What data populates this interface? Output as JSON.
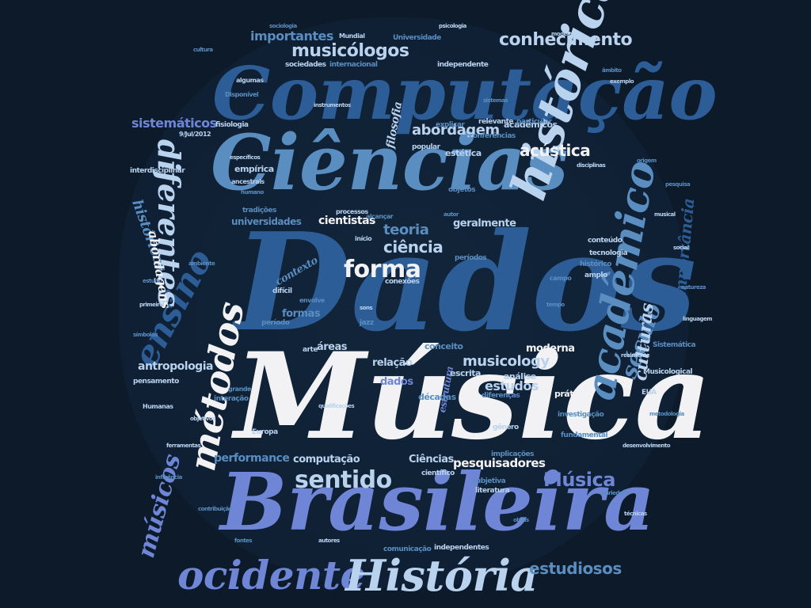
{
  "words": {
    "musica": "Música",
    "dados": "Dados",
    "brasileira": "Brasileira",
    "ciencias": "Ciências",
    "computacao": "Computação",
    "historica": "histórica",
    "academico": "acadêmico",
    "metodos": "métodos",
    "ensino": "ensino",
    "historia": "História",
    "ocidente": "ocidente",
    "diferentes": "diferentes",
    "sentido": "sentido",
    "forma": "forma",
    "musicologos": "musicólogos",
    "conhecimento": "conhecimento",
    "importantes": "importantes",
    "abordagem": "abordagem",
    "acustica": "acústica",
    "ciencia": "ciência",
    "teoria": "teoria",
    "cientistas": "cientistas",
    "universidades": "universidades",
    "musicos": "músicos",
    "musica_small": "Música",
    "estudiosos": "estudiosos",
    "musicology": "musicology",
    "estudos": "estudos",
    "culturas": "culturas",
    "seculo": "século",
    "importancia": "importância",
    "sistematicos": "sistemáticos",
    "filosofia": "filosofia",
    "fisiologia": "fisiologia",
    "estetica": "estética",
    "empirica": "empírica",
    "historicos": "históricos",
    "abordagens": "abordagens",
    "antropologia": "antropologia",
    "performance": "performance",
    "computacao_small": "computação",
    "pesquisadores": "pesquisadores",
    "ciencias_small": "Ciências",
    "relacao": "relação",
    "moderna": "moderna",
    "areas": "áreas",
    "dados_small": "dados",
    "formas": "formas",
    "contexto": "contexto",
    "academicos": "acadêmicos",
    "sociedades": "sociedades",
    "internacional": "internacional",
    "universidade": "Universidade",
    "geralmente": "geralmente",
    "periodo": "período",
    "interdisciplinar": "interdisciplinar",
    "tradicoes": "tradições",
    "pensamento": "pensamento",
    "interacao": "interação",
    "decadas": "décadas",
    "escrita": "escrita",
    "pratica": "prática",
    "conceito": "conceito",
    "analise": "análise",
    "explicar": "explicar",
    "relevante": "relevante",
    "particular": "particular",
    "popular": "popular",
    "conferencias": "conferências",
    "independente": "independente",
    "europa": "Europa",
    "diferencas": "diferenças",
    "genero": "gênero",
    "subjetiva": "subjetiva",
    "literatura": "literatura",
    "comunicacao": "comunicação",
    "independentes": "independentes",
    "implicacoes": "implicações",
    "cientifico": "científico",
    "fundamental": "fundamental",
    "tecnologia": "tecnologia",
    "historico": "histórico",
    "conteudo": "conteúdo",
    "investigacao": "investigação",
    "musicological": "Musicological",
    "mundial": "Mundial",
    "sistematica": "Sistemática",
    "date": "9/Jul/2012",
    "disponivel": "Disponível",
    "algumas": "algumas",
    "conexoes": "conexões",
    "arte": "arte",
    "jazz": "jazz",
    "amplo": "amplo",
    "objetos": "objetos",
    "humanas": "Humanas",
    "estrutura": "estrutura",
    "alcancar": "alcançar",
    "inicio": "início",
    "periodos": "períodos",
    "processos": "processos",
    "campo": "campo",
    "dificil": "difícil",
    "envolve": "envolve",
    "cultura": "cultura",
    "exemplo": "exemplo",
    "origem": "origem",
    "musical": "musical",
    "estudo": "estudo",
    "primeiro": "primeiro",
    "autor": "autor",
    "disciplinas": "disciplinas",
    "ambito": "âmbito",
    "social": "social",
    "natureza": "natureza",
    "especificos": "específicos",
    "humano": "humano",
    "ancestrais": "ancestrais",
    "contribuicao": "contribuição",
    "qualificacoes": "qualificações",
    "variedade": "variedade",
    "desenvolvimento": "desenvolvimento",
    "metodologia": "metodologia",
    "objetivos": "objetivos",
    "influencia": "influência",
    "ferramentas": "ferramentas",
    "pesquisa": "pesquisa",
    "eua": "EUA",
    "grande": "grande",
    "realmente": "realmente",
    "simbolos": "símbolos",
    "linguagem": "linguagem",
    "tempo": "tempo",
    "sons": "sons",
    "ambiente": "ambiente",
    "instrumentos": "instrumentos",
    "sistemas": "sistemas",
    "modelos": "modelos",
    "sociologia": "sociologia",
    "psicologia": "psicologia",
    "obras": "obras",
    "autores": "autores",
    "fontes": "fontes",
    "tecnicas": "técnicas"
  }
}
